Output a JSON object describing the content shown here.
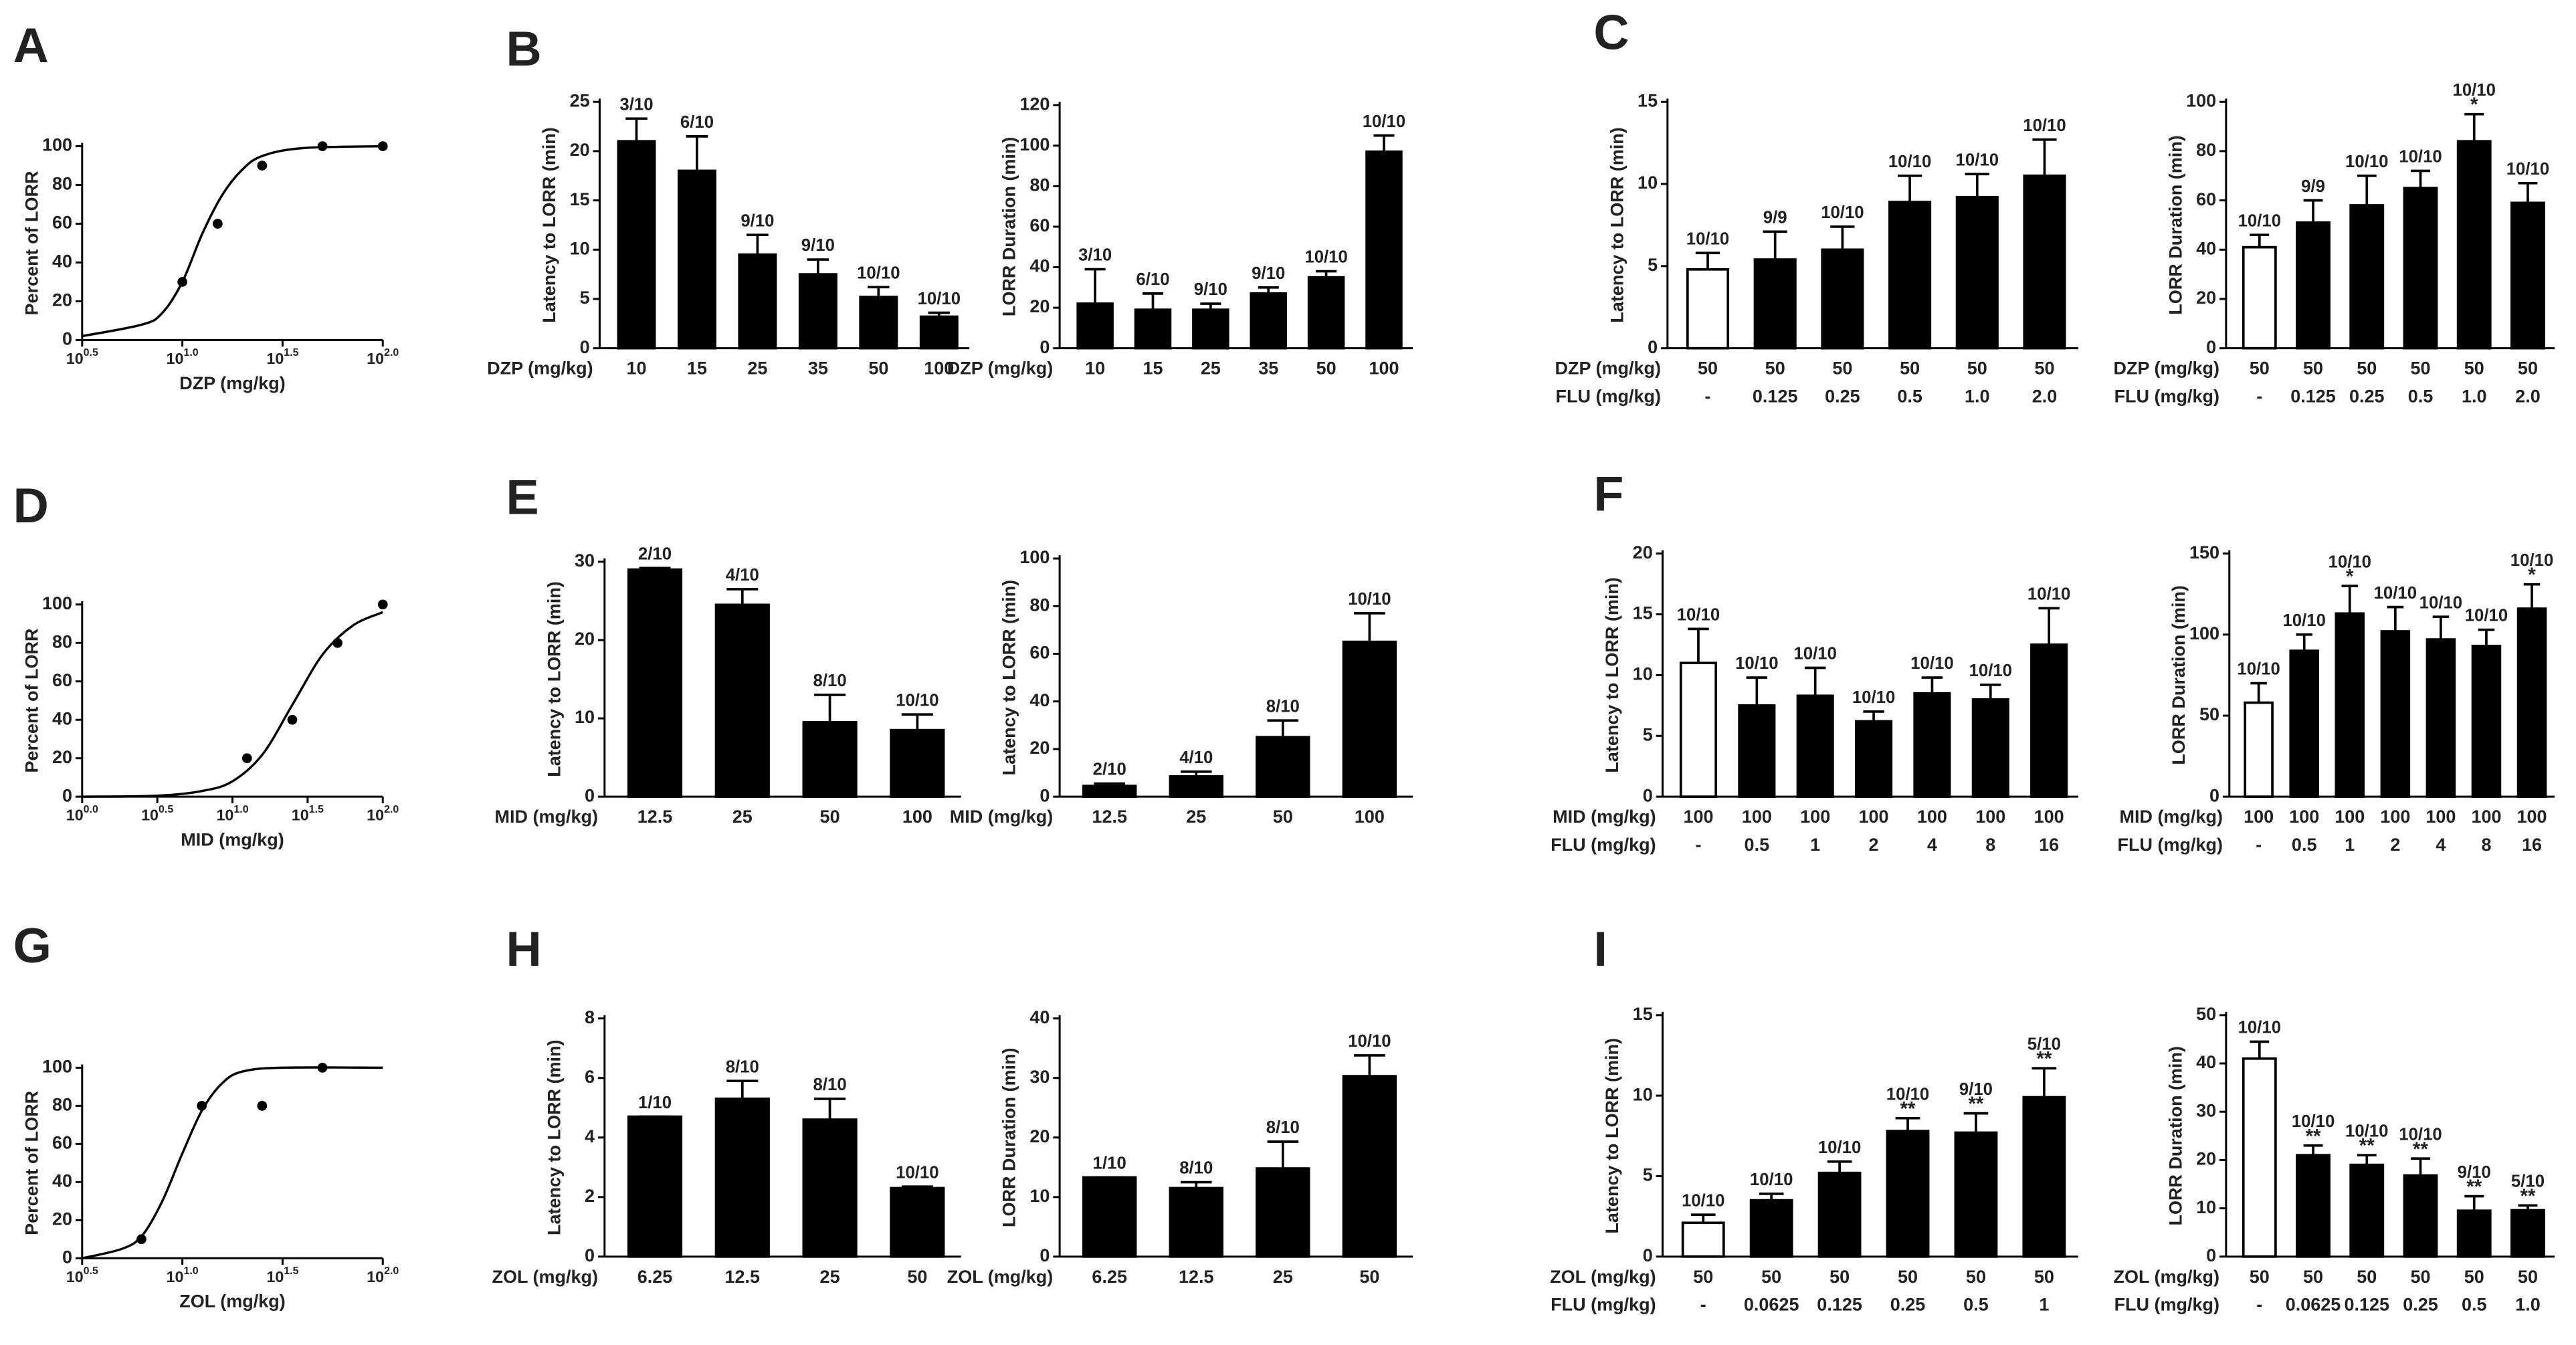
{
  "panel_labels": [
    "A",
    "B",
    "C",
    "D",
    "E",
    "F",
    "G",
    "H",
    "I"
  ],
  "chart_data": [
    {
      "type": "scatter",
      "ylabel": "Percent of LORR",
      "xlabel": "DZP (mg/kg)",
      "log_x": true,
      "x": [
        10,
        15,
        25,
        50,
        100
      ],
      "values": [
        30,
        60,
        90,
        100,
        100
      ],
      "fit": {
        "x": [
          3.162,
          6.31,
          7.943,
          10,
          12.59,
          15.85,
          19.95,
          25.12,
          39.81,
          100
        ],
        "y": [
          2,
          8,
          14,
          30,
          55,
          75,
          88,
          95,
          99,
          100
        ]
      },
      "xlim": [
        3.162,
        100
      ],
      "xticks": [
        {
          "value": 3.162,
          "label": "10",
          "sup": "0.5"
        },
        {
          "value": 10,
          "label": "10",
          "sup": "1.0"
        },
        {
          "value": 31.62,
          "label": "10",
          "sup": "1.5"
        },
        {
          "value": 100,
          "label": "10",
          "sup": "2.0"
        }
      ],
      "ylim": [
        0,
        100
      ],
      "yticks": [
        0,
        20,
        40,
        60,
        80,
        100
      ],
      "color": "#000000"
    },
    {
      "type": "bar",
      "ylabel": "Latency to LORR (min)",
      "xlabel": "DZP (mg/kg)",
      "categories": [
        "10",
        "15",
        "25",
        "35",
        "50",
        "100"
      ],
      "values": [
        21,
        18,
        9.5,
        7.5,
        5.2,
        3.2
      ],
      "errors": [
        2.3,
        3.5,
        2,
        1.5,
        1,
        0.4
      ],
      "annotations": [
        "3/10",
        "6/10",
        "9/10",
        "9/10",
        "10/10",
        "10/10"
      ],
      "colors": [
        "#000000",
        "#000000",
        "#000000",
        "#000000",
        "#000000",
        "#000000"
      ],
      "ylim": [
        0,
        25
      ],
      "yticks": [
        0,
        5,
        10,
        15,
        20,
        25
      ]
    },
    {
      "type": "bar",
      "ylabel": "LORR Duration (min)",
      "xlabel": "DZP (mg/kg)",
      "categories": [
        "10",
        "15",
        "25",
        "35",
        "50",
        "100"
      ],
      "values": [
        22,
        19,
        19,
        27,
        35,
        97
      ],
      "errors": [
        17,
        8,
        3,
        3,
        3,
        8
      ],
      "annotations": [
        "3/10",
        "6/10",
        "9/10",
        "9/10",
        "10/10",
        "10/10"
      ],
      "colors": [
        "#000000",
        "#000000",
        "#000000",
        "#000000",
        "#000000",
        "#000000"
      ],
      "ylim": [
        0,
        120
      ],
      "yticks": [
        0,
        20,
        40,
        60,
        80,
        100,
        120
      ]
    },
    {
      "type": "bar",
      "ylabel": "Latency to LORR (min)",
      "xlabel": "DZP (mg/kg)",
      "xlabel2": "FLU (mg/kg)",
      "categories": [
        "50",
        "50",
        "50",
        "50",
        "50",
        "50"
      ],
      "categories2": [
        "-",
        "0.125",
        "0.25",
        "0.5",
        "1.0",
        "2.0"
      ],
      "values": [
        4.8,
        5.4,
        6.0,
        8.9,
        9.2,
        10.5
      ],
      "errors": [
        1,
        1.7,
        1.4,
        1.6,
        1.4,
        2.2
      ],
      "annotations": [
        "10/10",
        "9/9",
        "10/10",
        "10/10",
        "10/10",
        "10/10"
      ],
      "colors": [
        "#ffffff",
        "#000000",
        "#000000",
        "#000000",
        "#000000",
        "#000000"
      ],
      "ylim": [
        0,
        15
      ],
      "yticks": [
        0,
        5,
        10,
        15
      ]
    },
    {
      "type": "bar",
      "ylabel": "LORR Duration (min)",
      "xlabel": "DZP (mg/kg)",
      "xlabel2": "FLU (mg/kg)",
      "categories": [
        "50",
        "50",
        "50",
        "50",
        "50",
        "50"
      ],
      "categories2": [
        "-",
        "0.125",
        "0.25",
        "0.5",
        "1.0",
        "2.0"
      ],
      "values": [
        41,
        51,
        58,
        65,
        84,
        59
      ],
      "errors": [
        5,
        9,
        12,
        7,
        11,
        8
      ],
      "annotations": [
        "10/10",
        "9/9",
        "10/10",
        "10/10",
        "10/10",
        "10/10"
      ],
      "significance": [
        null,
        null,
        null,
        null,
        "*",
        null
      ],
      "colors": [
        "#ffffff",
        "#000000",
        "#000000",
        "#000000",
        "#000000",
        "#000000"
      ],
      "ylim": [
        0,
        100
      ],
      "yticks": [
        0,
        20,
        40,
        60,
        80,
        100
      ]
    },
    {
      "type": "scatter",
      "ylabel": "Percent of LORR",
      "xlabel": "MID (mg/kg)",
      "log_x": true,
      "x": [
        12.5,
        25,
        50,
        100
      ],
      "values": [
        20,
        40,
        80,
        100
      ],
      "fit": {
        "x": [
          1,
          3.162,
          6.31,
          10,
          15.85,
          25.12,
          39.81,
          63.1,
          100
        ],
        "y": [
          0,
          0.5,
          3,
          8,
          22,
          48,
          74,
          89,
          96
        ]
      },
      "xlim": [
        1,
        100
      ],
      "xticks": [
        {
          "value": 1,
          "label": "10",
          "sup": "0.0"
        },
        {
          "value": 3.162,
          "label": "10",
          "sup": "0.5"
        },
        {
          "value": 10,
          "label": "10",
          "sup": "1.0"
        },
        {
          "value": 31.62,
          "label": "10",
          "sup": "1.5"
        },
        {
          "value": 100,
          "label": "10",
          "sup": "2.0"
        }
      ],
      "ylim": [
        0,
        100
      ],
      "yticks": [
        0,
        20,
        40,
        60,
        80,
        100
      ],
      "color": "#000000"
    },
    {
      "type": "bar",
      "ylabel": "Latency to LORR (min)",
      "xlabel": "MID (mg/kg)",
      "categories": [
        "12.5",
        "25",
        "50",
        "100"
      ],
      "values": [
        29,
        24.5,
        9.5,
        8.5
      ],
      "errors": [
        0.2,
        2,
        3.5,
        2
      ],
      "annotations": [
        "2/10",
        "4/10",
        "8/10",
        "10/10"
      ],
      "colors": [
        "#000000",
        "#000000",
        "#000000",
        "#000000"
      ],
      "ylim": [
        0,
        30
      ],
      "yticks": [
        0,
        10,
        20,
        30
      ]
    },
    {
      "type": "bar",
      "ylabel": "Latency to LORR (min)",
      "xlabel": "MID (mg/kg)",
      "categories": [
        "12.5",
        "25",
        "50",
        "100"
      ],
      "values": [
        4.5,
        8.5,
        25,
        65
      ],
      "errors": [
        1,
        2,
        7,
        12
      ],
      "annotations": [
        "2/10",
        "4/10",
        "8/10",
        "10/10"
      ],
      "colors": [
        "#000000",
        "#000000",
        "#000000",
        "#000000"
      ],
      "ylim": [
        0,
        100
      ],
      "yticks": [
        0,
        20,
        40,
        60,
        80,
        100
      ]
    },
    {
      "type": "bar",
      "ylabel": "Latency to LORR (min)",
      "xlabel": "MID (mg/kg)",
      "xlabel2": "FLU (mg/kg)",
      "categories": [
        "100",
        "100",
        "100",
        "100",
        "100",
        "100",
        "100"
      ],
      "categories2": [
        "-",
        "0.5",
        "1",
        "2",
        "4",
        "8",
        "16"
      ],
      "values": [
        11,
        7.5,
        8.3,
        6.2,
        8.5,
        8,
        12.5
      ],
      "errors": [
        2.8,
        2.3,
        2.3,
        0.8,
        1.3,
        1.2,
        3
      ],
      "annotations": [
        "10/10",
        "10/10",
        "10/10",
        "10/10",
        "10/10",
        "10/10",
        "10/10"
      ],
      "colors": [
        "#ffffff",
        "#000000",
        "#000000",
        "#000000",
        "#000000",
        "#000000",
        "#000000"
      ],
      "ylim": [
        0,
        20
      ],
      "yticks": [
        0,
        5,
        10,
        15,
        20
      ]
    },
    {
      "type": "bar",
      "ylabel": "LORR Duration (min)",
      "xlabel": "MID (mg/kg)",
      "xlabel2": "FLU (mg/kg)",
      "categories": [
        "100",
        "100",
        "100",
        "100",
        "100",
        "100",
        "100"
      ],
      "categories2": [
        "-",
        "0.5",
        "1",
        "2",
        "4",
        "8",
        "16"
      ],
      "values": [
        58,
        90,
        113,
        102,
        97,
        93,
        116
      ],
      "errors": [
        12,
        10,
        17,
        15,
        14,
        10,
        15
      ],
      "annotations": [
        "10/10",
        "10/10",
        "10/10",
        "10/10",
        "10/10",
        "10/10",
        "10/10"
      ],
      "significance": [
        null,
        null,
        "*",
        null,
        null,
        null,
        "*"
      ],
      "colors": [
        "#ffffff",
        "#000000",
        "#000000",
        "#000000",
        "#000000",
        "#000000",
        "#000000"
      ],
      "ylim": [
        0,
        150
      ],
      "yticks": [
        0,
        50,
        100,
        150
      ]
    },
    {
      "type": "scatter",
      "ylabel": "Percent of LORR",
      "xlabel": "ZOL (mg/kg)",
      "log_x": true,
      "x": [
        6.25,
        12.5,
        25,
        50
      ],
      "values": [
        10,
        80,
        80,
        100
      ],
      "fit": {
        "x": [
          3.162,
          5.012,
          6.31,
          7.943,
          10,
          12.59,
          15.85,
          19.95,
          31.62,
          100
        ],
        "y": [
          0,
          5,
          12,
          30,
          55,
          78,
          92,
          98,
          100,
          100
        ]
      },
      "xlim": [
        3.162,
        100
      ],
      "xticks": [
        {
          "value": 3.162,
          "label": "10",
          "sup": "0.5"
        },
        {
          "value": 10,
          "label": "10",
          "sup": "1.0"
        },
        {
          "value": 31.62,
          "label": "10",
          "sup": "1.5"
        },
        {
          "value": 100,
          "label": "10",
          "sup": "2.0"
        }
      ],
      "ylim": [
        0,
        100
      ],
      "yticks": [
        0,
        20,
        40,
        60,
        80,
        100
      ],
      "color": "#000000"
    },
    {
      "type": "bar",
      "ylabel": "Latency to LORR (min)",
      "xlabel": "ZOL (mg/kg)",
      "categories": [
        "6.25",
        "12.5",
        "25",
        "50"
      ],
      "values": [
        4.7,
        5.3,
        4.6,
        2.3
      ],
      "errors": [
        0,
        0.6,
        0.7,
        0.05
      ],
      "annotations": [
        "1/10",
        "8/10",
        "8/10",
        "10/10"
      ],
      "colors": [
        "#000000",
        "#000000",
        "#000000",
        "#000000"
      ],
      "ylim": [
        0,
        8
      ],
      "yticks": [
        0,
        2,
        4,
        6,
        8
      ]
    },
    {
      "type": "bar",
      "ylabel": "LORR Duration (min)",
      "xlabel": "ZOL (mg/kg)",
      "categories": [
        "6.25",
        "12.5",
        "25",
        "50"
      ],
      "values": [
        13.3,
        11.5,
        14.8,
        30.3
      ],
      "errors": [
        0,
        1,
        4.5,
        3.5
      ],
      "annotations": [
        "1/10",
        "8/10",
        "8/10",
        "10/10"
      ],
      "colors": [
        "#000000",
        "#000000",
        "#000000",
        "#000000"
      ],
      "ylim": [
        0,
        40
      ],
      "yticks": [
        0,
        10,
        20,
        30,
        40
      ]
    },
    {
      "type": "bar",
      "ylabel": "Latency to LORR (min)",
      "xlabel": "ZOL (mg/kg)",
      "xlabel2": "FLU (mg/kg)",
      "categories": [
        "50",
        "50",
        "50",
        "50",
        "50",
        "50"
      ],
      "categories2": [
        "-",
        "0.0625",
        "0.125",
        "0.25",
        "0.5",
        "1"
      ],
      "values": [
        2.1,
        3.5,
        5.2,
        7.8,
        7.7,
        9.9
      ],
      "errors": [
        0.5,
        0.4,
        0.7,
        0.8,
        1.2,
        1.8
      ],
      "annotations": [
        "10/10",
        "10/10",
        "10/10",
        "10/10",
        "9/10",
        "5/10"
      ],
      "significance": [
        null,
        null,
        null,
        "**",
        "**",
        "**"
      ],
      "colors": [
        "#ffffff",
        "#000000",
        "#000000",
        "#000000",
        "#000000",
        "#000000"
      ],
      "ylim": [
        0,
        15
      ],
      "yticks": [
        0,
        5,
        10,
        15
      ]
    },
    {
      "type": "bar",
      "ylabel": "LORR Duration (min)",
      "xlabel": "ZOL (mg/kg)",
      "xlabel2": "FLU (mg/kg)",
      "categories": [
        "50",
        "50",
        "50",
        "50",
        "50",
        "50"
      ],
      "categories2": [
        "-",
        "0.0625",
        "0.125",
        "0.25",
        "0.5",
        "1.0"
      ],
      "values": [
        41,
        21,
        19,
        16.8,
        9.5,
        9.6
      ],
      "errors": [
        3.5,
        2,
        2,
        3.5,
        3,
        1
      ],
      "annotations": [
        "10/10",
        "10/10",
        "10/10",
        "10/10",
        "9/10",
        "5/10"
      ],
      "significance": [
        null,
        "**",
        "**",
        "**",
        "**",
        "**"
      ],
      "colors": [
        "#ffffff",
        "#000000",
        "#000000",
        "#000000",
        "#000000",
        "#000000"
      ],
      "ylim": [
        0,
        50
      ],
      "yticks": [
        0,
        10,
        20,
        30,
        40,
        50
      ]
    }
  ]
}
